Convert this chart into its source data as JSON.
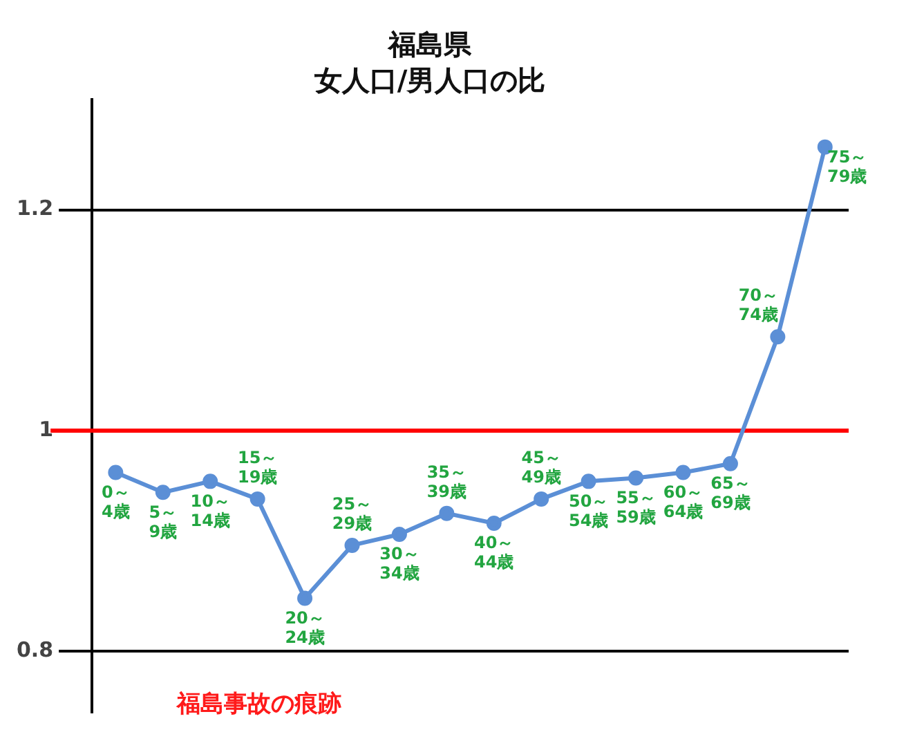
{
  "chart_data": {
    "type": "line",
    "title": "福島県",
    "subtitle": "女人口/男人口の比",
    "categories": [
      "0～4歳",
      "5～9歳",
      "10～14歳",
      "15～19歳",
      "20～24歳",
      "25～29歳",
      "30～34歳",
      "35～39歳",
      "40～44歳",
      "45～49歳",
      "50～54歳",
      "55～59歳",
      "60～64歳",
      "65～69歳",
      "70～74歳",
      "75～79歳"
    ],
    "series": [
      {
        "color": "#5b8fd6",
        "values": [
          0.962,
          0.944,
          0.954,
          0.938,
          0.848,
          0.896,
          0.906,
          0.925,
          0.916,
          0.938,
          0.954,
          0.957,
          0.962,
          0.97,
          1.085,
          1.257
        ]
      }
    ],
    "ylim": [
      0.745,
      1.3
    ],
    "yticks": [
      0.8,
      1,
      1.2
    ],
    "grid": "y",
    "tick_labels": "y",
    "marker": "circle",
    "line_style": "solid",
    "legend": false,
    "ref_lines": [
      {
        "axis": "y",
        "value": 1,
        "color": "#ff0000"
      }
    ],
    "annotations": [
      "福島事故の痕跡"
    ]
  }
}
